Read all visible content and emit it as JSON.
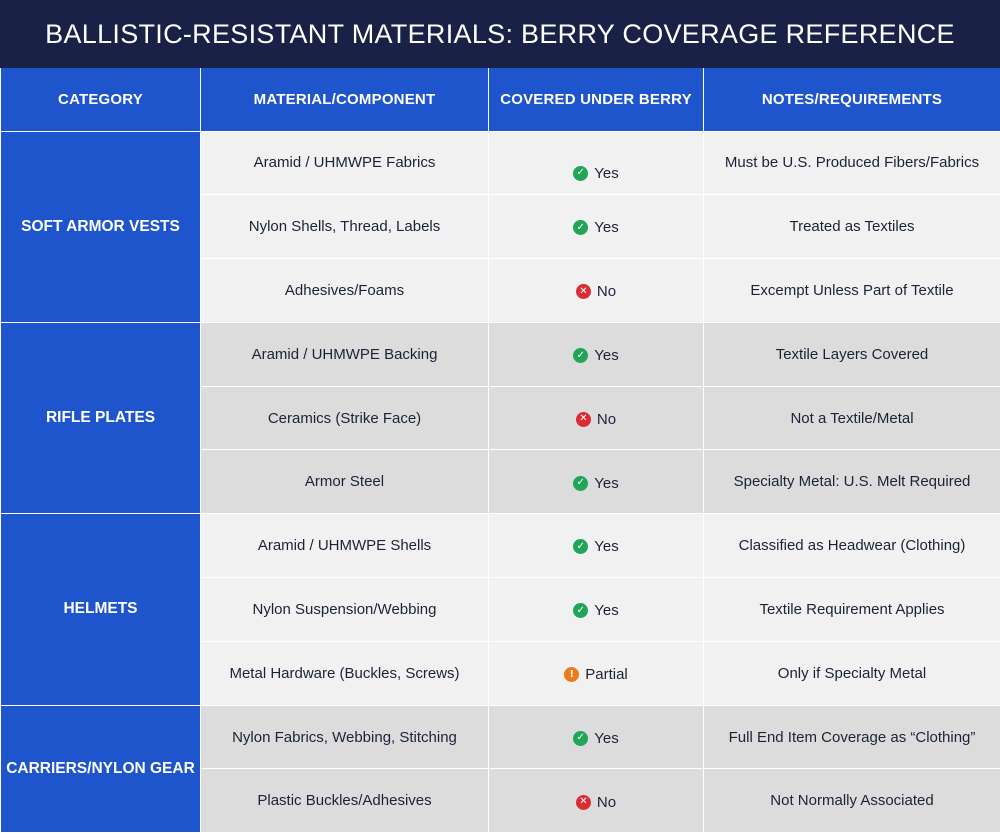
{
  "title": "BALLISTIC-RESISTANT MATERIALS: BERRY COVERAGE REFERENCE",
  "headers": [
    "CATEGORY",
    "MATERIAL/COMPONENT",
    "COVERED UNDER BERRY",
    "NOTES/REQUIREMENTS"
  ],
  "colors": {
    "title_bg": "#1a2146",
    "accent": "#1e55cc",
    "yes": "#22a55a",
    "no": "#d92c35",
    "partial": "#ef7a1a"
  },
  "groups": [
    {
      "category": "SOFT ARMOR VESTS",
      "rows": [
        {
          "material": "Aramid / UHMWPE Fabrics",
          "covered": "Yes",
          "status": "yes",
          "notes": "Must be U.S. Produced Fibers/Fabrics"
        },
        {
          "material": "Nylon Shells, Thread, Labels",
          "covered": "Yes",
          "status": "yes",
          "notes": "Treated as Textiles"
        },
        {
          "material": "Adhesives/Foams",
          "covered": "No",
          "status": "no",
          "notes": "Excempt Unless Part of Textile"
        }
      ]
    },
    {
      "category": "RIFLE PLATES",
      "rows": [
        {
          "material": "Aramid / UHMWPE Backing",
          "covered": "Yes",
          "status": "yes",
          "notes": "Textile Layers Covered"
        },
        {
          "material": "Ceramics (Strike Face)",
          "covered": "No",
          "status": "no",
          "notes": "Not a Textile/Metal"
        },
        {
          "material": "Armor Steel",
          "covered": "Yes",
          "status": "yes",
          "notes": "Specialty Metal: U.S. Melt Required"
        }
      ]
    },
    {
      "category": "HELMETS",
      "rows": [
        {
          "material": "Aramid / UHMWPE Shells",
          "covered": "Yes",
          "status": "yes",
          "notes": "Classified as Headwear (Clothing)"
        },
        {
          "material": "Nylon Suspension/Webbing",
          "covered": "Yes",
          "status": "yes",
          "notes": "Textile Requirement Applies"
        },
        {
          "material": "Metal Hardware (Buckles, Screws)",
          "covered": "Partial",
          "status": "partial",
          "notes": "Only if Specialty Metal"
        }
      ]
    },
    {
      "category": "CARRIERS/NYLON GEAR",
      "rows": [
        {
          "material": "Nylon Fabrics, Webbing, Stitching",
          "covered": "Yes",
          "status": "yes",
          "notes": "Full End Item Coverage as “Clothing”"
        },
        {
          "material": "Plastic Buckles/Adhesives",
          "covered": "No",
          "status": "no",
          "notes": "Not Normally Associated"
        }
      ]
    }
  ]
}
